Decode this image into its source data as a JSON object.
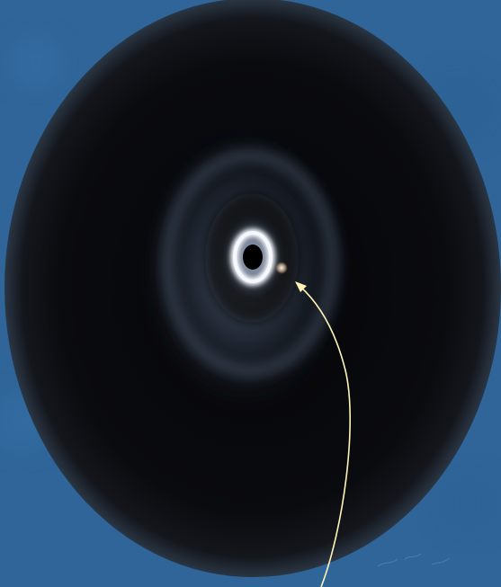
{
  "scene": {
    "subject": "protoplanetary-disk-image",
    "colors": {
      "background": "#2f6599",
      "background_mottle": "#3a74ab",
      "vignette_outer": "#0b0c10",
      "vignette_inner": "#070709",
      "halo": "#8fa6c8",
      "ring_glow": "#cfe2ff",
      "bright_ring": "#ffffff",
      "central_star": "#000000",
      "companion_glint": "#f3e0c8",
      "arrow": "#fff4b8"
    },
    "annotation": {
      "pointer_icon": "arrow-icon",
      "label": ""
    }
  }
}
